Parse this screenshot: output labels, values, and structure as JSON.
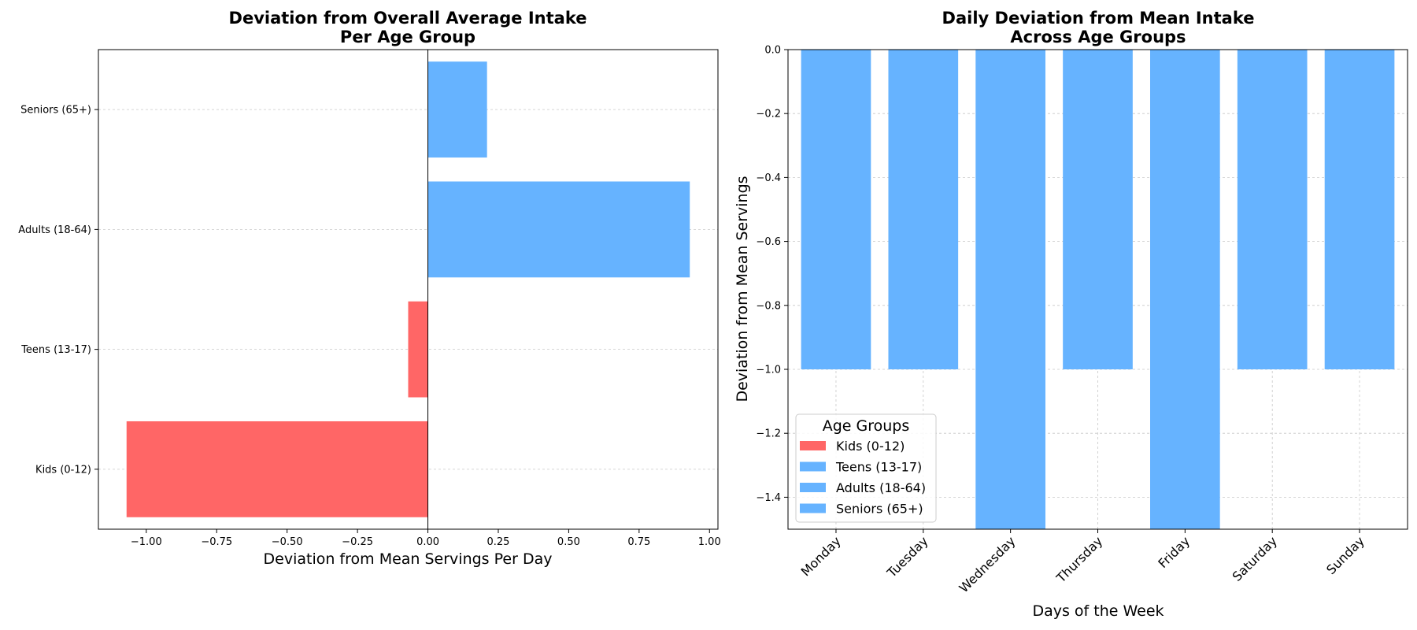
{
  "chart_data": [
    {
      "type": "bar",
      "orientation": "horizontal",
      "title_lines": [
        "Deviation from Overall Average Intake",
        "Per Age Group"
      ],
      "xlabel": "Deviation from Mean Servings Per Day",
      "ylabel": "",
      "categories": [
        "Kids (0-12)",
        "Teens (13-17)",
        "Adults (18-64)",
        "Seniors (65+)"
      ],
      "values": [
        -1.07,
        -0.07,
        0.93,
        0.21
      ],
      "xlim": [
        -1.17,
        1.03
      ],
      "xticks": [
        -1.0,
        -0.75,
        -0.5,
        -0.25,
        0.0,
        0.25,
        0.5,
        0.75,
        1.0
      ],
      "xtick_labels": [
        "−1.00",
        "−0.75",
        "−0.50",
        "−0.25",
        "0.00",
        "0.25",
        "0.50",
        "0.75",
        "1.00"
      ],
      "negative_color": "#ff6666",
      "positive_color": "#66b3ff",
      "grid": "y-dashed"
    },
    {
      "type": "bar",
      "orientation": "vertical",
      "title_lines": [
        "Daily Deviation from Mean Intake",
        "Across Age Groups"
      ],
      "xlabel": "Days of the Week",
      "ylabel": "Deviation from Mean Servings",
      "categories": [
        "Monday",
        "Tuesday",
        "Wednesday",
        "Thursday",
        "Friday",
        "Saturday",
        "Sunday"
      ],
      "values": [
        -1.0,
        -1.0,
        -1.5,
        -1.0,
        -1.5,
        -1.0,
        -1.0
      ],
      "ylim": [
        -1.5,
        0.0
      ],
      "yticks": [
        0.0,
        -0.2,
        -0.4,
        -0.6,
        -0.8,
        -1.0,
        -1.2,
        -1.4
      ],
      "ytick_labels": [
        "0.0",
        "−0.2",
        "−0.4",
        "−0.6",
        "−0.8",
        "−1.0",
        "−1.2",
        "−1.4"
      ],
      "bar_color": "#66b3ff",
      "grid": "both-dashed",
      "legend": {
        "title": "Age Groups",
        "placement": "lower-left",
        "entries": [
          {
            "label": "Kids (0-12)",
            "color": "#ff6666"
          },
          {
            "label": "Teens (13-17)",
            "color": "#66b3ff"
          },
          {
            "label": "Adults (18-64)",
            "color": "#66b3ff"
          },
          {
            "label": "Seniors (65+)",
            "color": "#66b3ff"
          }
        ]
      }
    }
  ]
}
